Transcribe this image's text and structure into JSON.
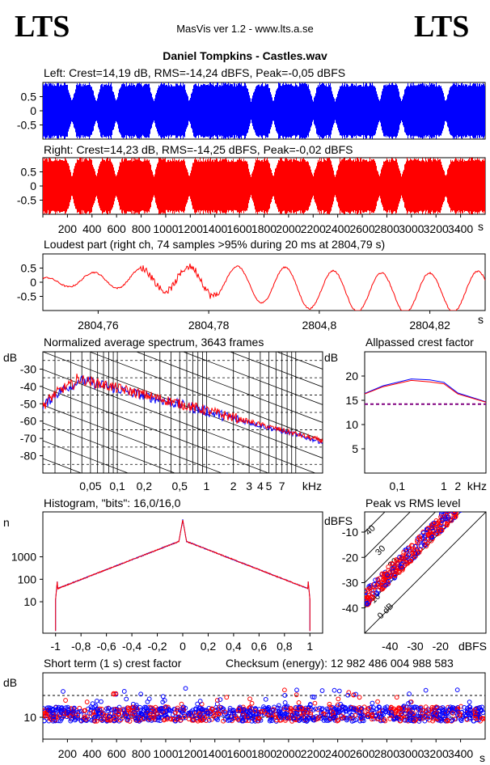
{
  "header": {
    "logo_left": "LTS",
    "logo_right": "LTS",
    "app_title": "MasVis ver 1.2 - www.lts.a.se",
    "file_title": "Daniel Tompkins - Castles.wav"
  },
  "colors": {
    "left": "#0000ff",
    "right": "#ff0000",
    "ref": "#800080"
  },
  "chart_data": [
    {
      "id": "waveform-left",
      "type": "area",
      "title": "Left: Crest=14,19 dB, RMS=-14,24 dBFS, Peak=-0,05 dBFS",
      "yticks": [
        "0.5",
        "0",
        "-0.5"
      ],
      "ylim": [
        -1,
        1
      ],
      "series": [
        {
          "name": "",
          "color": "#0000ff"
        }
      ]
    },
    {
      "id": "waveform-right",
      "type": "area",
      "title": "Right: Crest=14,23 dB, RMS=-14,25 dBFS, Peak=-0,02 dBFS",
      "yticks": [
        "0.5",
        "0",
        "-0.5"
      ],
      "ylim": [
        -1,
        1
      ],
      "xticks": [
        "200",
        "400",
        "600",
        "800",
        "1000",
        "1200",
        "1400",
        "1600",
        "1800",
        "2000",
        "2200",
        "2400",
        "2600",
        "2800",
        "3000",
        "3200",
        "3400"
      ],
      "xunit": "s",
      "series": [
        {
          "name": "",
          "color": "#ff0000"
        }
      ]
    },
    {
      "id": "loudest-part",
      "type": "line",
      "title": "Loudest part (right ch, 74 samples >95% during 20 ms at 2804,79 s)",
      "yticks": [
        "0.5",
        "0",
        "-0.5"
      ],
      "xticks": [
        "2804,76",
        "2804,78",
        "2804,8",
        "2804,82"
      ],
      "xunit": "s",
      "xlim": [
        2804.75,
        2804.83
      ],
      "ylim": [
        -1,
        1
      ],
      "series": [
        {
          "name": "",
          "color": "#ff0000"
        }
      ]
    },
    {
      "id": "spectrum",
      "type": "line",
      "title": "Normalized average spectrum, 3643 frames",
      "ylabel": "dB",
      "yticks": [
        "-30",
        "-40",
        "-50",
        "-60",
        "-70",
        "-80"
      ],
      "xticks": [
        "0,05",
        "0,1",
        "0,2",
        "0,5",
        "1",
        "2",
        "3",
        "4",
        "5",
        "7"
      ],
      "xunit": "kHz",
      "ylim": [
        -90,
        -20
      ],
      "series": [
        {
          "name": "",
          "color": "#0000ff"
        },
        {
          "name": "",
          "color": "#ff0000"
        }
      ]
    },
    {
      "id": "allpassed-crest",
      "type": "line",
      "title": "Allpassed crest factor",
      "ylabel": "dB",
      "yticks": [
        "20",
        "15",
        "10",
        "5"
      ],
      "xticks": [
        "0,1",
        "1",
        "2"
      ],
      "xunit": "kHz",
      "ylim": [
        0,
        25
      ],
      "series": [
        {
          "name": "",
          "color": "#0000ff",
          "values": [
            16.4,
            18.0,
            19.4,
            19.2,
            18.7,
            16.5,
            14.7
          ]
        },
        {
          "name": "",
          "color": "#ff0000",
          "values": [
            16.3,
            17.8,
            19.1,
            18.8,
            18.4,
            16.3,
            14.6
          ]
        }
      ],
      "reference": 14.2
    },
    {
      "id": "histogram",
      "type": "line",
      "title": "Histogram, \"bits\": 16,0/16,0",
      "ylabel": "n",
      "yticks": [
        "1000",
        "100",
        "10"
      ],
      "xticks": [
        "-1",
        "-0,8",
        "-0,6",
        "-0,4",
        "-0,2",
        "0",
        "0,2",
        "0,4",
        "0,6",
        "0,8",
        "1"
      ],
      "xlim": [
        -1.1,
        1.1
      ],
      "series": [
        {
          "name": "",
          "color": "#0000ff"
        },
        {
          "name": "",
          "color": "#ff0000"
        }
      ]
    },
    {
      "id": "peak-vs-rms",
      "type": "scatter",
      "title": "Peak vs RMS level",
      "ylabel": "dBFS",
      "yticks": [
        "-10",
        "-20",
        "-30",
        "-40"
      ],
      "xticks": [
        "-40",
        "-30",
        "-20"
      ],
      "xunit": "dBFS",
      "diag_labels": [
        "40",
        "30",
        "20",
        "10",
        "0 dB"
      ],
      "series": [
        {
          "name": "",
          "color": "#0000ff"
        },
        {
          "name": "",
          "color": "#ff0000"
        }
      ]
    },
    {
      "id": "short-term-crest",
      "type": "scatter",
      "title": "Short term (1 s) crest factor",
      "checksum": "Checksum (energy):  12 982 486 004 988 583",
      "ylabel": "dB",
      "yticks": [
        "10"
      ],
      "xticks": [
        "200",
        "400",
        "600",
        "800",
        "1000",
        "1200",
        "1400",
        "1600",
        "1800",
        "2000",
        "2200",
        "2400",
        "2600",
        "2800",
        "3000",
        "3200",
        "3400"
      ],
      "xunit": "s",
      "series": [
        {
          "name": "",
          "color": "#0000ff"
        },
        {
          "name": "",
          "color": "#ff0000"
        }
      ]
    }
  ]
}
